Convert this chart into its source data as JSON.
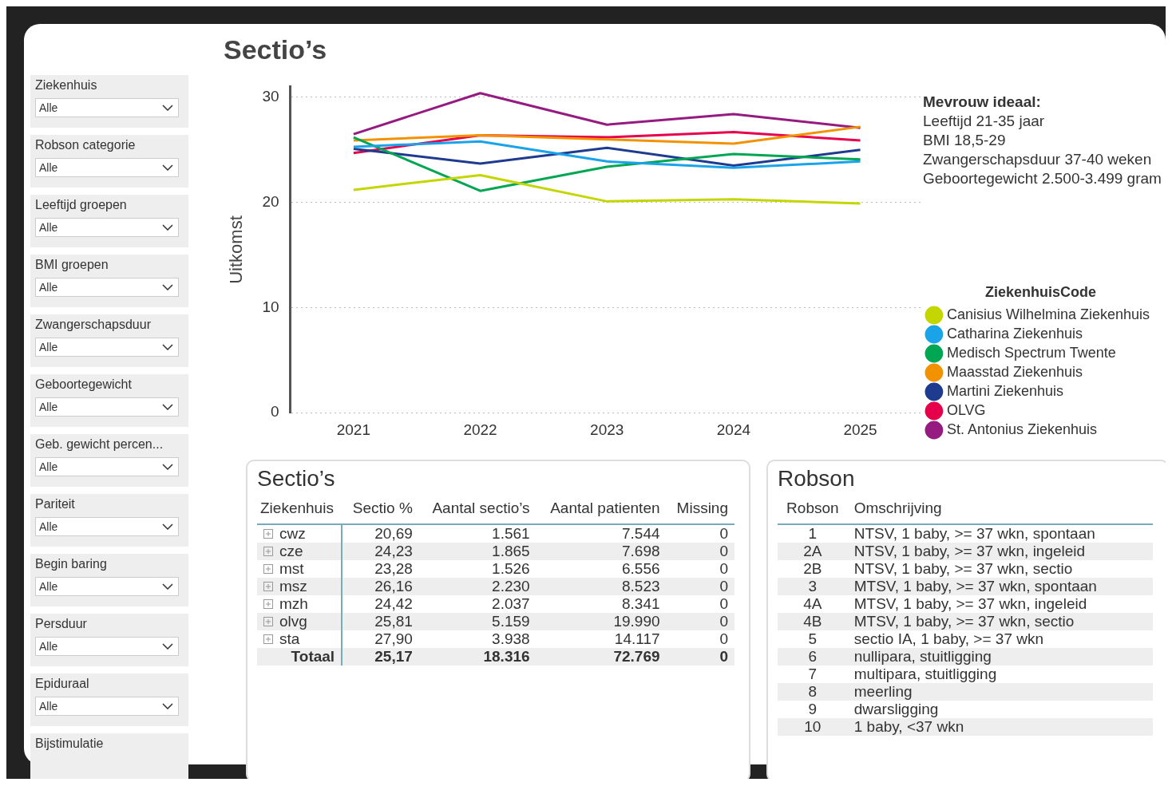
{
  "chart_data": [
    {
      "type": "line",
      "title": "Sectio’s",
      "ylabel": "Uitkomst",
      "categories": [
        "2021",
        "2022",
        "2023",
        "2024",
        "2025"
      ],
      "ylim": [
        0,
        31
      ],
      "yticks": [
        0,
        10,
        20,
        30
      ],
      "grid": "y",
      "legend": "right",
      "legend_title": "ZiekenhuisCode",
      "annotations": [
        "Mevrouw ideaal:",
        "Leeftijd 21-35 jaar",
        "BMI 18,5-29",
        "Zwangerschapsduur 37-40 weken",
        "Geboortegewicht 2.500-3.499 gram"
      ],
      "series": [
        {
          "name": "Canisius Wilhelmina Ziekenhuis",
          "color": "#c4d600",
          "values": [
            21.2,
            22.6,
            20.1,
            20.3,
            19.9
          ]
        },
        {
          "name": "Catharina Ziekenhuis",
          "color": "#1aa3e8",
          "values": [
            25.3,
            25.8,
            23.9,
            23.3,
            23.9
          ]
        },
        {
          "name": "Medisch Spectrum Twente",
          "color": "#00a651",
          "values": [
            26.2,
            21.1,
            23.4,
            24.6,
            24.1
          ]
        },
        {
          "name": "Maasstad Ziekenhuis",
          "color": "#f39200",
          "values": [
            25.9,
            26.4,
            26.0,
            25.6,
            27.2
          ]
        },
        {
          "name": "Martini Ziekenhuis",
          "color": "#1f3b8f",
          "values": [
            25.1,
            23.7,
            25.2,
            23.5,
            25.0
          ]
        },
        {
          "name": "OLVG",
          "color": "#e6004c",
          "values": [
            24.7,
            26.4,
            26.2,
            26.7,
            25.9
          ]
        },
        {
          "name": "St. Antonius Ziekenhuis",
          "color": "#951b81",
          "values": [
            26.5,
            30.4,
            27.4,
            28.4,
            27.1
          ]
        }
      ]
    },
    {
      "type": "other",
      "annotations": [
        "Ziekenhuis",
        "Alle",
        "Robson categorie",
        "Alle",
        "Leeftijd groepen",
        "Alle",
        "BMI groepen",
        "Alle",
        "Zwangerschapsduur",
        "Alle",
        "Geboortegewicht",
        "Alle",
        "Geb. gewicht percen...",
        "Alle",
        "Pariteit",
        "Alle",
        "Begin baring",
        "Alle",
        "Persduur",
        "Alle",
        "Epiduraal",
        "Alle",
        "Bijstimulatie"
      ]
    },
    {
      "type": "other",
      "title": "Sectio’s",
      "xlabel": "Ziekenhuis",
      "categories": [
        "cwz",
        "cze",
        "mst",
        "msz",
        "mzh",
        "olvg",
        "sta",
        "Totaal"
      ],
      "series": [
        {
          "name": "Sectio %",
          "colors": [
            "#ffffff",
            "#eeeeee",
            "#ffffff",
            "#eeeeee",
            "#ffffff",
            "#eeeeee",
            "#ffffff",
            "#eeeeee"
          ],
          "values": [
            20.69,
            24.23,
            23.28,
            26.16,
            24.42,
            25.81,
            27.9,
            25.17
          ],
          "value_labels": [
            "20,69",
            "24,23",
            "23,28",
            "26,16",
            "24,42",
            "25,81",
            "27,90",
            "25,17"
          ]
        },
        {
          "name": "Aantal sectio’s",
          "values": [
            1561,
            1865,
            1526,
            2230,
            2037,
            5159,
            3938,
            18316
          ],
          "value_labels": [
            "1.561",
            "1.865",
            "1.526",
            "2.230",
            "2.037",
            "5.159",
            "3.938",
            "18.316"
          ]
        },
        {
          "name": "Aantal patienten",
          "values": [
            7544,
            7698,
            6556,
            8523,
            8341,
            19990,
            14117,
            72769
          ],
          "value_labels": [
            "7.544",
            "7.698",
            "6.556",
            "8.523",
            "8.341",
            "19.990",
            "14.117",
            "72.769"
          ]
        },
        {
          "name": "Missing",
          "values": [
            0,
            0,
            0,
            0,
            0,
            0,
            0,
            0
          ],
          "value_labels": [
            "0",
            "0",
            "0",
            "0",
            "0",
            "0",
            "0",
            "0"
          ]
        }
      ]
    },
    {
      "type": "other",
      "title": "Robson",
      "xlabel": "Robson",
      "ylabel": "Omschrijving",
      "categories": [
        "1",
        "2A",
        "2B",
        "3",
        "4A",
        "4B",
        "5",
        "6",
        "7",
        "8",
        "9",
        "10"
      ],
      "annotations": [
        "NTSV, 1 baby, >= 37 wkn, spontaan",
        "NTSV, 1 baby, >= 37 wkn, ingeleid",
        "NTSV, 1 baby, >= 37 wkn, sectio",
        "MTSV, 1 baby, >= 37 wkn, spontaan",
        "MTSV, 1 baby, >= 37 wkn, ingeleid",
        "MTSV, 1 baby, >= 37 wkn, sectio",
        "sectio IA, 1 baby, >= 37 wkn",
        "nullipara, stuitligging",
        "multipara, stuitligging",
        "meerling",
        "dwarsligging",
        "1 baby, <37 wkn"
      ]
    }
  ]
}
